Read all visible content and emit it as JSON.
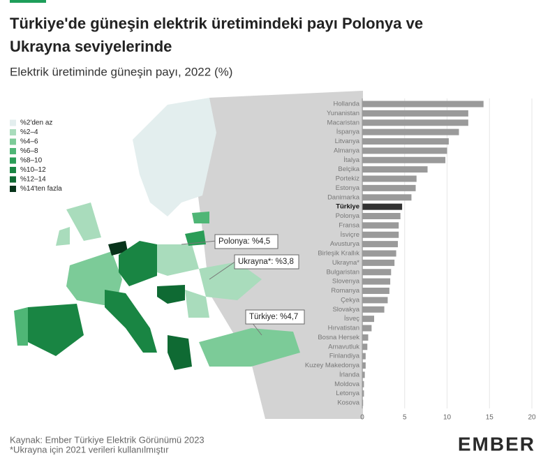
{
  "header": {
    "title_line1": "Türkiye'de güneşin elektrik üretimindeki payı Polonya ve",
    "title_line2": "Ukrayna seviyelerinde",
    "subtitle": "Elektrik üretiminde güneşin payı, 2022 (%)"
  },
  "legend": [
    {
      "label": "%2'den az",
      "color": "#e3eeee"
    },
    {
      "label": "%2–4",
      "color": "#a9dcbc"
    },
    {
      "label": "%4–6",
      "color": "#7ccb98"
    },
    {
      "label": "%6–8",
      "color": "#4fb676"
    },
    {
      "label": "%8–10",
      "color": "#2a9d57"
    },
    {
      "label": "%10–12",
      "color": "#198543"
    },
    {
      "label": "%12–14",
      "color": "#0f6a33"
    },
    {
      "label": "%14'ten fazla",
      "color": "#07331a"
    }
  ],
  "annotations": [
    "Polonya: %4,5",
    "Ukrayna*: %3,8",
    "Türkiye: %4,7"
  ],
  "chart_data": {
    "type": "hbar",
    "categories": [
      "Hollanda",
      "Yunanistan",
      "Macaristan",
      "İspanya",
      "Litvanya",
      "Almanya",
      "İtalya",
      "Belçika",
      "Portekiz",
      "Estonya",
      "Danimarka",
      "Türkiye",
      "Polonya",
      "Fransa",
      "İsviçre",
      "Avusturya",
      "Birleşik Krallık",
      "Ukrayna*",
      "Bulgaristan",
      "Slovenya",
      "Romanya",
      "Çekya",
      "Slovakya",
      "İsveç",
      "Hırvatistan",
      "Bosna Hersek",
      "Arnavutluk",
      "Finlandiya",
      "Kuzey Makedonya",
      "İrlanda",
      "Moldova",
      "Letonya",
      "Kosova"
    ],
    "values": [
      14.3,
      12.5,
      12.5,
      11.4,
      10.2,
      10.0,
      9.8,
      7.7,
      6.4,
      6.3,
      5.8,
      4.7,
      4.5,
      4.3,
      4.3,
      4.2,
      4.0,
      3.8,
      3.4,
      3.3,
      3.2,
      3.0,
      2.6,
      1.4,
      1.1,
      0.7,
      0.6,
      0.4,
      0.4,
      0.3,
      0.2,
      0.2,
      0.1
    ],
    "colors": [
      "#9a9a9a",
      "#9a9a9a",
      "#9a9a9a",
      "#9a9a9a",
      "#9a9a9a",
      "#9a9a9a",
      "#9a9a9a",
      "#9a9a9a",
      "#9a9a9a",
      "#9a9a9a",
      "#9a9a9a",
      "#333333",
      "#9a9a9a",
      "#9a9a9a",
      "#9a9a9a",
      "#9a9a9a",
      "#9a9a9a",
      "#9a9a9a",
      "#9a9a9a",
      "#9a9a9a",
      "#9a9a9a",
      "#9a9a9a",
      "#9a9a9a",
      "#9a9a9a",
      "#9a9a9a",
      "#9a9a9a",
      "#9a9a9a",
      "#9a9a9a",
      "#9a9a9a",
      "#9a9a9a",
      "#9a9a9a",
      "#9a9a9a",
      "#9a9a9a"
    ],
    "xlim": [
      0,
      20
    ],
    "xticks": [
      0,
      5,
      10,
      15,
      20
    ],
    "grid": true
  },
  "footer": {
    "source": "Kaynak: Ember Türkiye Elektrik Görünümü 2023",
    "note": "*Ukrayna için 2021 verileri kullanılmıştır",
    "logo": "EMBER"
  }
}
